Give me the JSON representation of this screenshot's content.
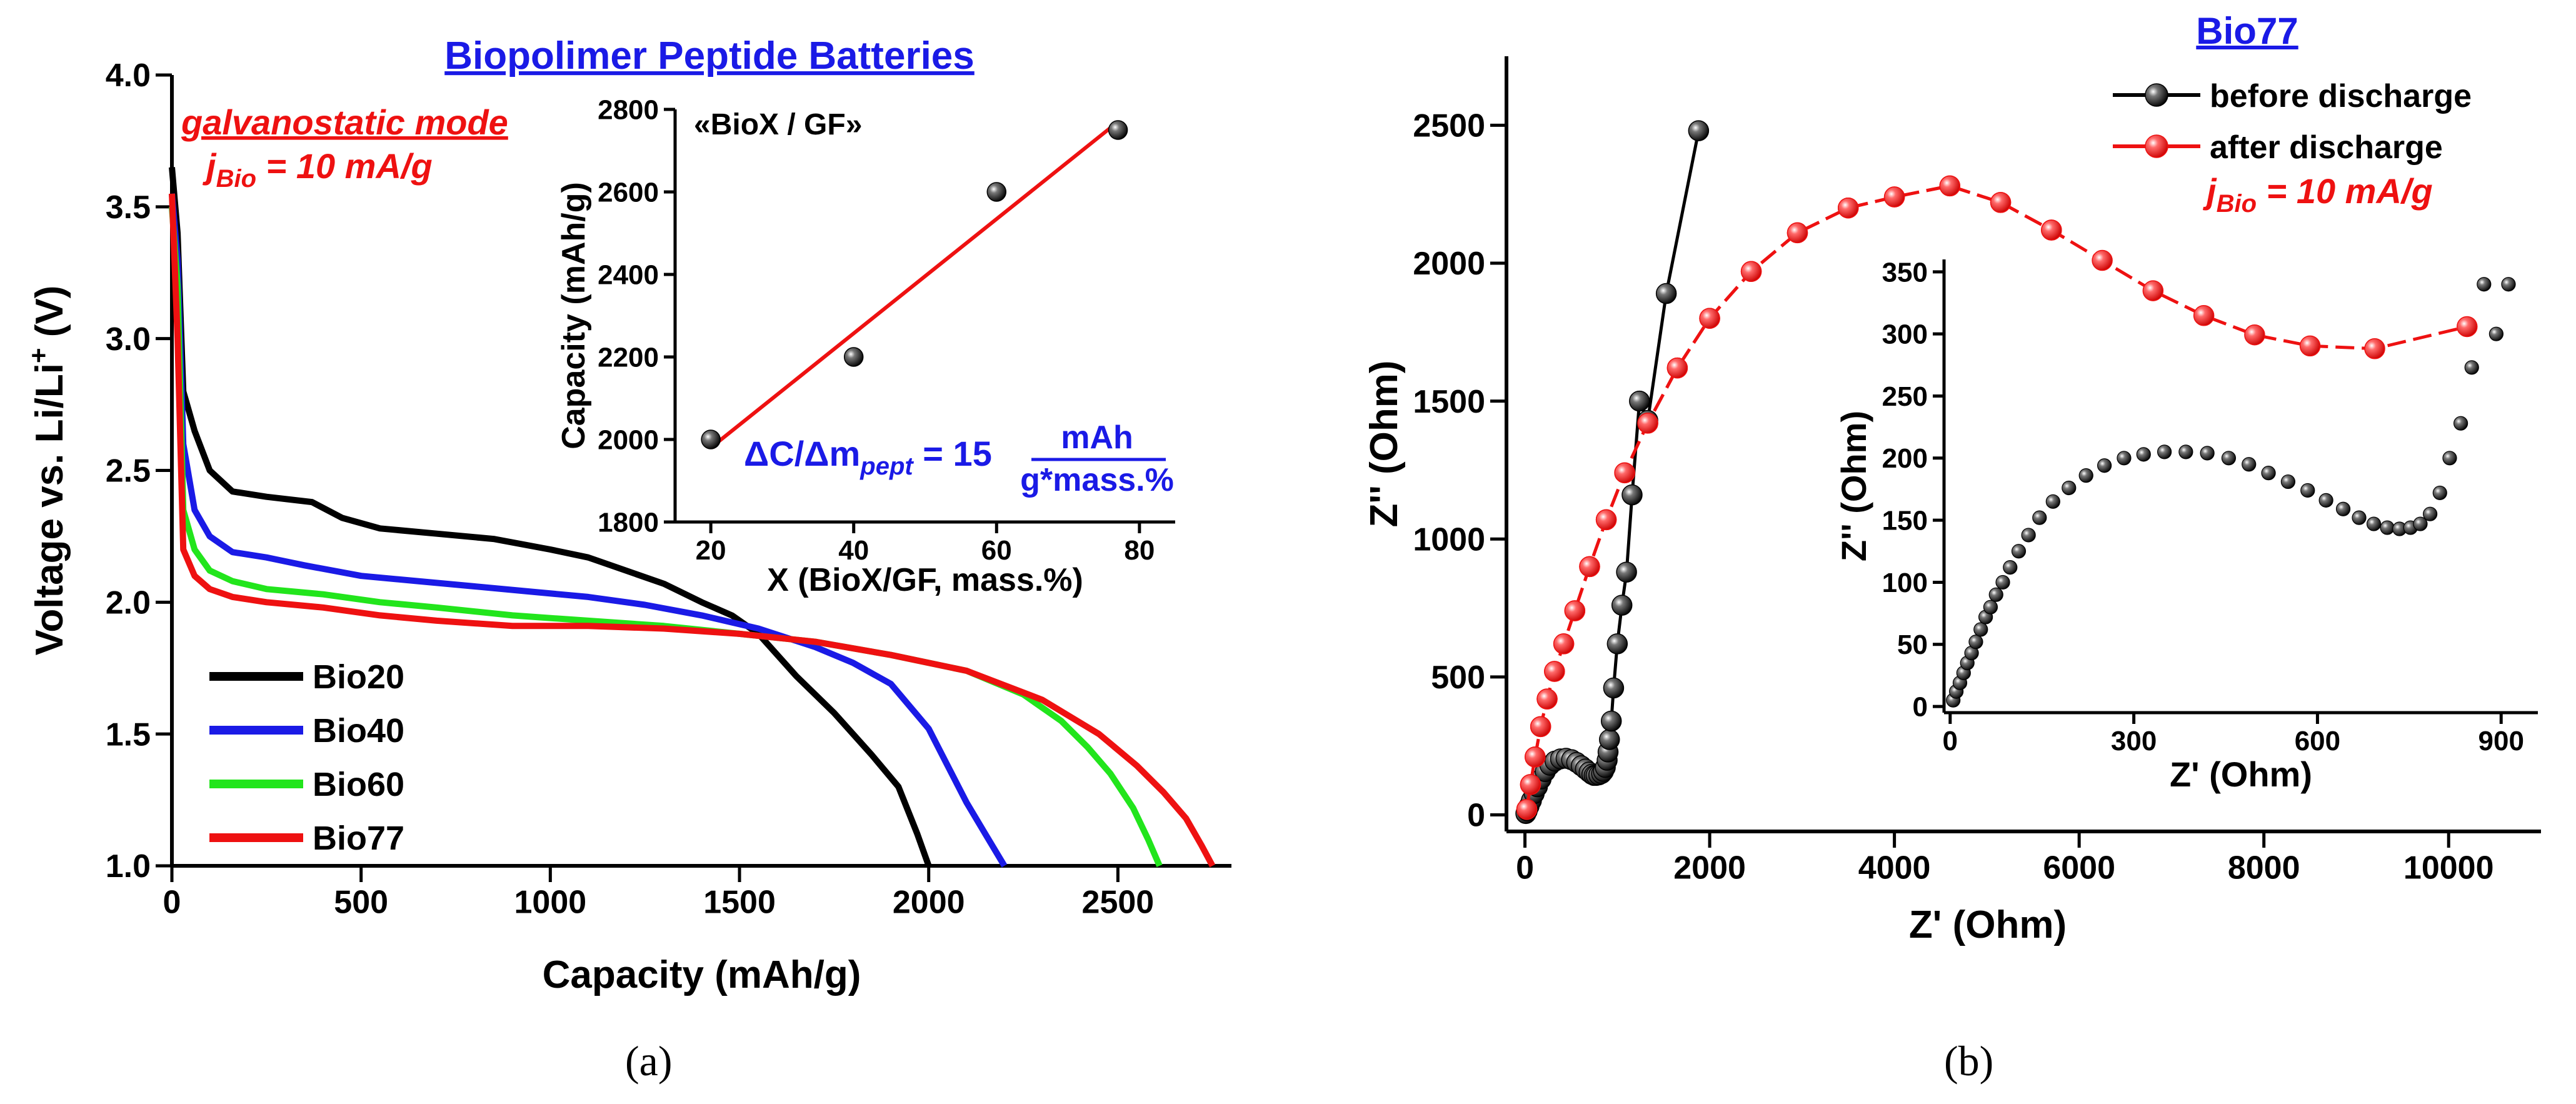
{
  "colors": {
    "black": "#000000",
    "blue": "#1a1ae6",
    "green": "#22e51c",
    "red": "#ee1111",
    "title_blue": "#1a1ae6"
  },
  "chart_data": [
    {
      "id": "a",
      "type": "line",
      "subfigure_label": "(a)",
      "title": "Biopolimer Peptide Batteries",
      "xlabel": "Capacity (mAh/g)",
      "ylabel": "Voltage vs. Li/Li",
      "ylabel_sup": "+",
      "ylabel_suffix": " (V)",
      "xlim": [
        0,
        2800
      ],
      "ylim": [
        1.0,
        4.0
      ],
      "xticks": [
        0,
        500,
        1000,
        1500,
        2000,
        2500
      ],
      "xtick_labels": [
        "0",
        "500",
        "1000",
        "1500",
        "2000",
        "2500"
      ],
      "yticks": [
        1.0,
        1.5,
        2.0,
        2.5,
        3.0,
        3.5,
        4.0
      ],
      "ytick_labels": [
        "1.0",
        "1.5",
        "2.0",
        "2.5",
        "3.0",
        "3.5",
        "4.0"
      ],
      "annotation_mode": "galvanostatic mode",
      "annotation_current": {
        "j": "j",
        "sub": "Bio",
        "rest": " = 10 mA/g"
      },
      "series": [
        {
          "name": "Bio20",
          "color": "#000000",
          "x": [
            0,
            15,
            30,
            60,
            100,
            160,
            250,
            370,
            450,
            550,
            700,
            850,
            1000,
            1100,
            1200,
            1300,
            1400,
            1480,
            1550,
            1650,
            1750,
            1850,
            1920,
            1970,
            2000
          ],
          "y": [
            3.65,
            3.4,
            2.8,
            2.65,
            2.5,
            2.42,
            2.4,
            2.38,
            2.32,
            2.28,
            2.26,
            2.24,
            2.2,
            2.17,
            2.12,
            2.07,
            2.0,
            1.95,
            1.88,
            1.72,
            1.58,
            1.42,
            1.3,
            1.12,
            1.0
          ]
        },
        {
          "name": "Bio40",
          "color": "#1a1ae6",
          "x": [
            0,
            15,
            30,
            60,
            100,
            160,
            250,
            350,
            500,
            650,
            800,
            950,
            1100,
            1250,
            1400,
            1550,
            1700,
            1800,
            1900,
            2000,
            2050,
            2100,
            2150,
            2200
          ],
          "y": [
            3.55,
            3.3,
            2.6,
            2.35,
            2.25,
            2.19,
            2.17,
            2.14,
            2.1,
            2.08,
            2.06,
            2.04,
            2.02,
            1.99,
            1.95,
            1.9,
            1.83,
            1.77,
            1.69,
            1.52,
            1.38,
            1.24,
            1.12,
            1.0
          ]
        },
        {
          "name": "Bio60",
          "color": "#22e51c",
          "x": [
            0,
            15,
            30,
            60,
            100,
            160,
            250,
            400,
            550,
            700,
            900,
            1100,
            1300,
            1500,
            1700,
            1900,
            2100,
            2250,
            2350,
            2420,
            2480,
            2540,
            2580,
            2610
          ],
          "y": [
            3.5,
            3.2,
            2.35,
            2.2,
            2.12,
            2.08,
            2.05,
            2.03,
            2.0,
            1.98,
            1.95,
            1.93,
            1.91,
            1.88,
            1.85,
            1.8,
            1.74,
            1.65,
            1.55,
            1.45,
            1.35,
            1.22,
            1.1,
            1.0
          ]
        },
        {
          "name": "Bio77",
          "color": "#ee1111",
          "x": [
            0,
            15,
            30,
            60,
            100,
            160,
            250,
            400,
            550,
            700,
            900,
            1100,
            1300,
            1500,
            1700,
            1900,
            2100,
            2300,
            2450,
            2550,
            2620,
            2680,
            2720,
            2750
          ],
          "y": [
            3.55,
            3.0,
            2.2,
            2.1,
            2.05,
            2.02,
            2.0,
            1.98,
            1.95,
            1.93,
            1.91,
            1.91,
            1.9,
            1.88,
            1.85,
            1.8,
            1.74,
            1.63,
            1.5,
            1.38,
            1.28,
            1.18,
            1.08,
            1.0
          ]
        }
      ],
      "legend_position": "bottom-left",
      "inset": {
        "type": "scatter",
        "title": "«BioX / GF»",
        "xlabel": "X (BioX/GF, mass.%)",
        "ylabel": "Capacity (mAh/g)",
        "xlim": [
          15,
          85
        ],
        "ylim": [
          1800,
          2800
        ],
        "xticks": [
          20,
          40,
          60,
          80
        ],
        "xtick_labels": [
          "20",
          "40",
          "60",
          "80"
        ],
        "yticks": [
          1800,
          2000,
          2200,
          2400,
          2600,
          2800
        ],
        "ytick_labels": [
          "1800",
          "2000",
          "2200",
          "2400",
          "2600",
          "2800"
        ],
        "points": {
          "x": [
            20,
            40,
            60,
            77
          ],
          "y": [
            2000,
            2200,
            2600,
            2750
          ]
        },
        "fit_line": {
          "x": [
            20,
            77
          ],
          "y": [
            1980,
            2770
          ]
        },
        "equation": {
          "lhs_main": "ΔC/Δm",
          "lhs_sub": "pept",
          "equals": " = 15",
          "numerator": "mAh",
          "denominator": "g*mass.%"
        }
      }
    },
    {
      "id": "b",
      "type": "line",
      "subfigure_label": "(b)",
      "title": "Bio77",
      "xlabel": "Z' (Ohm)",
      "ylabel": "Z'' (Ohm)",
      "xlim": [
        -200,
        11000
      ],
      "ylim": [
        -60,
        2750
      ],
      "xticks": [
        0,
        2000,
        4000,
        6000,
        8000,
        10000
      ],
      "xtick_labels": [
        "0",
        "2000",
        "4000",
        "6000",
        "8000",
        "10000"
      ],
      "yticks": [
        0,
        500,
        1000,
        1500,
        2000,
        2500
      ],
      "ytick_labels": [
        "0",
        "500",
        "1000",
        "1500",
        "2000",
        "2500"
      ],
      "legend_position": "top-right",
      "annotation_current": {
        "j": "j",
        "sub": "Bio",
        "rest": " = 10 mA/g"
      },
      "series": [
        {
          "name": "before discharge",
          "color": "#000000",
          "x": [
            10,
            25,
            45,
            70,
            100,
            135,
            175,
            220,
            270,
            325,
            385,
            445,
            505,
            560,
            610,
            655,
            695,
            725,
            750,
            770,
            800,
            830,
            850,
            870,
            890,
            900,
            915,
            935,
            960,
            1000,
            1050,
            1100,
            1160,
            1240,
            1330,
            1530,
            1880
          ],
          "y": [
            5,
            15,
            32,
            52,
            77,
            102,
            130,
            157,
            180,
            195,
            203,
            205,
            200,
            190,
            178,
            166,
            155,
            147,
            143,
            143,
            145,
            150,
            158,
            172,
            198,
            228,
            273,
            340,
            460,
            620,
            760,
            880,
            1160,
            1500,
            1430,
            1890,
            2480
          ]
        },
        {
          "name": "after discharge",
          "color": "#ee1111",
          "x": [
            20,
            60,
            110,
            170,
            240,
            320,
            420,
            540,
            700,
            880,
            1080,
            1330,
            1650,
            2000,
            2450,
            2950,
            3500,
            4000,
            4600,
            5150,
            5700,
            6250,
            6800,
            7350,
            7900,
            8500,
            9200,
            10200
          ],
          "y": [
            20,
            110,
            210,
            320,
            420,
            520,
            620,
            740,
            900,
            1070,
            1240,
            1420,
            1620,
            1800,
            1970,
            2110,
            2200,
            2240,
            2280,
            2220,
            2120,
            2010,
            1900,
            1810,
            1740,
            1700,
            1690,
            1770
          ]
        }
      ],
      "inset": {
        "type": "scatter",
        "xlabel": "Z' (Ohm)",
        "ylabel": "Z'' (Ohm)",
        "xlim": [
          -10,
          960
        ],
        "ylim": [
          -5,
          360
        ],
        "xticks": [
          0,
          300,
          600,
          900
        ],
        "xtick_labels": [
          "0",
          "300",
          "600",
          "900"
        ],
        "yticks": [
          0,
          50,
          100,
          150,
          200,
          250,
          300,
          350
        ],
        "ytick_labels": [
          "0",
          "50",
          "100",
          "150",
          "200",
          "250",
          "300",
          "350"
        ],
        "points": {
          "x": [
            5,
            10,
            16,
            22,
            28,
            35,
            42,
            50,
            58,
            66,
            75,
            86,
            98,
            112,
            128,
            146,
            168,
            194,
            222,
            252,
            284,
            316,
            350,
            385,
            420,
            455,
            488,
            520,
            552,
            584,
            614,
            642,
            668,
            692,
            714,
            734,
            752,
            768,
            784,
            800,
            816,
            834,
            852,
            872,
            892,
            912
          ],
          "y": [
            5,
            12,
            19,
            27,
            35,
            43,
            52,
            62,
            72,
            80,
            90,
            100,
            112,
            125,
            138,
            152,
            165,
            176,
            186,
            194,
            200,
            203,
            205,
            205,
            204,
            200,
            195,
            188,
            181,
            174,
            166,
            159,
            152,
            147,
            144,
            143,
            144,
            147,
            155,
            172,
            200,
            228,
            273,
            340,
            300,
            340
          ]
        }
      }
    }
  ]
}
